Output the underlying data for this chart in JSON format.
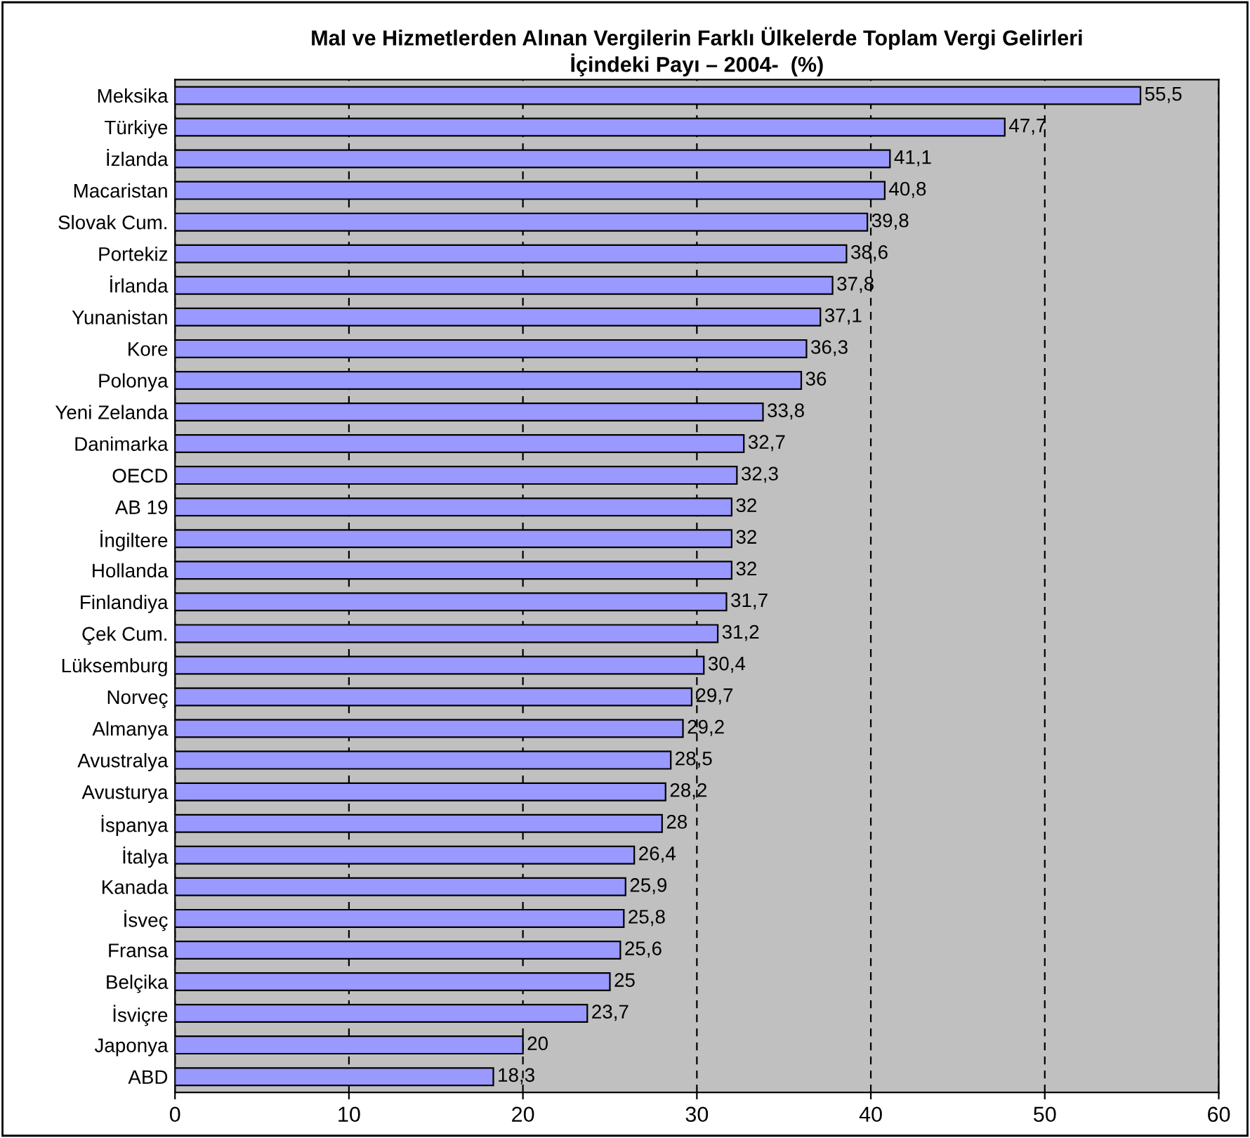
{
  "chart_data": {
    "type": "bar",
    "orientation": "horizontal",
    "title": "Mal ve Hizmetlerden Alınan Vergilerin Farklı Ülkelerde Toplam Vergi Gelirleri\nİçindeki Payı – 2004-  (%)",
    "categories": [
      "Meksika",
      "Türkiye",
      "İzlanda",
      "Macaristan",
      "Slovak Cum.",
      "Portekiz",
      "İrlanda",
      "Yunanistan",
      "Kore",
      "Polonya",
      "Yeni Zelanda",
      "Danimarka",
      "OECD",
      "AB 19",
      "İngiltere",
      "Hollanda",
      "Finlandiya",
      "Çek Cum.",
      "Lüksemburg",
      "Norveç",
      "Almanya",
      "Avustralya",
      "Avusturya",
      "İspanya",
      "İtalya",
      "Kanada",
      "İsveç",
      "Fransa",
      "Belçika",
      "İsviçre",
      "Japonya",
      "ABD"
    ],
    "values": [
      55.5,
      47.7,
      41.1,
      40.8,
      39.8,
      38.6,
      37.8,
      37.1,
      36.3,
      36,
      33.8,
      32.7,
      32.3,
      32,
      32,
      32,
      31.7,
      31.2,
      30.4,
      29.7,
      29.2,
      28.5,
      28.2,
      28,
      26.4,
      25.9,
      25.8,
      25.6,
      25,
      23.7,
      20,
      18.3
    ],
    "value_labels": [
      "55,5",
      "47,7",
      "41,1",
      "40,8",
      "39,8",
      "38,6",
      "37,8",
      "37,1",
      "36,3",
      "36",
      "33,8",
      "32,7",
      "32,3",
      "32",
      "32",
      "32",
      "31,7",
      "31,2",
      "30,4",
      "29,7",
      "29,2",
      "28,5",
      "28,2",
      "28",
      "26,4",
      "25,9",
      "25,8",
      "25,6",
      "25",
      "23,7",
      "20",
      "18,3"
    ],
    "color": "#9999ff",
    "xlim": [
      0,
      60
    ],
    "xticks": [
      0,
      10,
      20,
      30,
      40,
      50,
      60
    ],
    "grid": "x",
    "legend": false
  }
}
